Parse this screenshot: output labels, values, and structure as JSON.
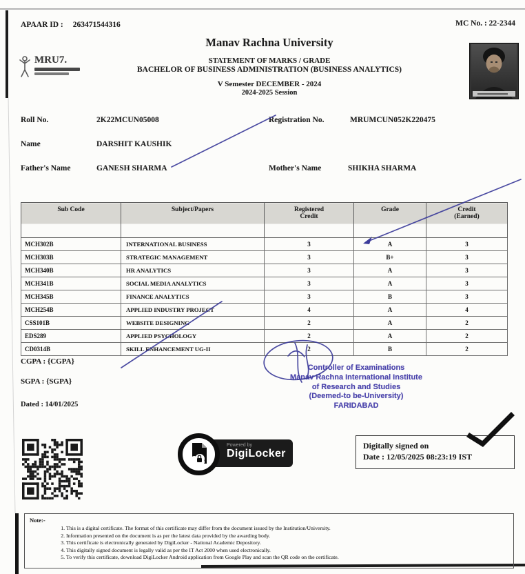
{
  "page": {
    "apaar_label": "APAAR ID :",
    "apaar_value": "263471544316",
    "mc_label": "MC No. : 22-2344"
  },
  "header": {
    "university": "Manav Rachna University",
    "statement": "STATEMENT OF MARKS / GRADE",
    "program": "BACHELOR OF BUSINESS ADMINISTRATION (BUSINESS ANALYTICS)",
    "semester": "V Semester DECEMBER - 2024",
    "session": "2024-2025 Session",
    "logo_text": "MRU7."
  },
  "student": {
    "roll_label": "Roll No.",
    "roll_value": "2K22MCUN05008",
    "registration_label": "Registration No.",
    "registration_value": "MRUMCUN052K220475",
    "name_label": "Name",
    "name_value": "DARSHIT KAUSHIK",
    "father_label": "Father's Name",
    "father_value": "GANESH SHARMA",
    "mother_label": "Mother's Name",
    "mother_value": "SHIKHA SHARMA"
  },
  "table": {
    "headers": [
      "Sub Code",
      "Subject/Papers",
      "Registered\nCredit",
      "Grade",
      "Credit\n(Earned)"
    ],
    "rows": [
      [
        "MCH302B",
        "INTERNATIONAL BUSINESS",
        "3",
        "A",
        "3"
      ],
      [
        "MCH303B",
        "STRATEGIC MANAGEMENT",
        "3",
        "B+",
        "3"
      ],
      [
        "MCH340B",
        "HR ANALYTICS",
        "3",
        "A",
        "3"
      ],
      [
        "MCH341B",
        "SOCIAL MEDIA ANALYTICS",
        "3",
        "A",
        "3"
      ],
      [
        "MCH345B",
        "FINANCE ANALYTICS",
        "3",
        "B",
        "3"
      ],
      [
        "MCH254B",
        "APPLIED INDUSTRY PROJECT",
        "4",
        "A",
        "4"
      ],
      [
        "CSS101B",
        "WEBSITE DESIGNING",
        "2",
        "A",
        "2"
      ],
      [
        "EDS289",
        "APPLIED PSYCHOLOGY",
        "2",
        "A",
        "2"
      ],
      [
        "CD0314B",
        "SKILL ENHANCEMENT UG-II",
        "2",
        "B",
        "2"
      ]
    ]
  },
  "summary": {
    "cgpa": "CGPA : {CGPA}",
    "sgpa": "SGPA : {SGPA}",
    "dated": "Dated : 14/01/2025"
  },
  "stamp": {
    "lines": [
      "Controller of Examinations",
      "Manav Rachna International Institute",
      "of Research and Studies",
      "(Deemed-to be-University)",
      "FARIDABAD"
    ]
  },
  "digilocker": {
    "powered_by": "Powered by",
    "name": "DigiLocker"
  },
  "signature_box": {
    "line1": "Digitally signed on",
    "line2": "Date : 12/05/2025 08:23:19 IST"
  },
  "notes": {
    "title": "Note:-",
    "items": [
      "This is a digital certificate. The format of this certificate may differ from the document issued by the Institution/University.",
      "Information presented on the document is as per the latest data provided by the awarding body.",
      "This certificate is electronically generated by DigiLocker - National Academic Depository.",
      "This digitally signed document is legally valid as per the IT Act 2000 when used electronically.",
      "To verify this certificate, download DigiLocker Android application from Google Play and scan the QR code on the certificate."
    ]
  },
  "colors": {
    "pen": "#3c3c9a",
    "stamp": "#4a43ab",
    "qr": "#1a1a1a"
  }
}
